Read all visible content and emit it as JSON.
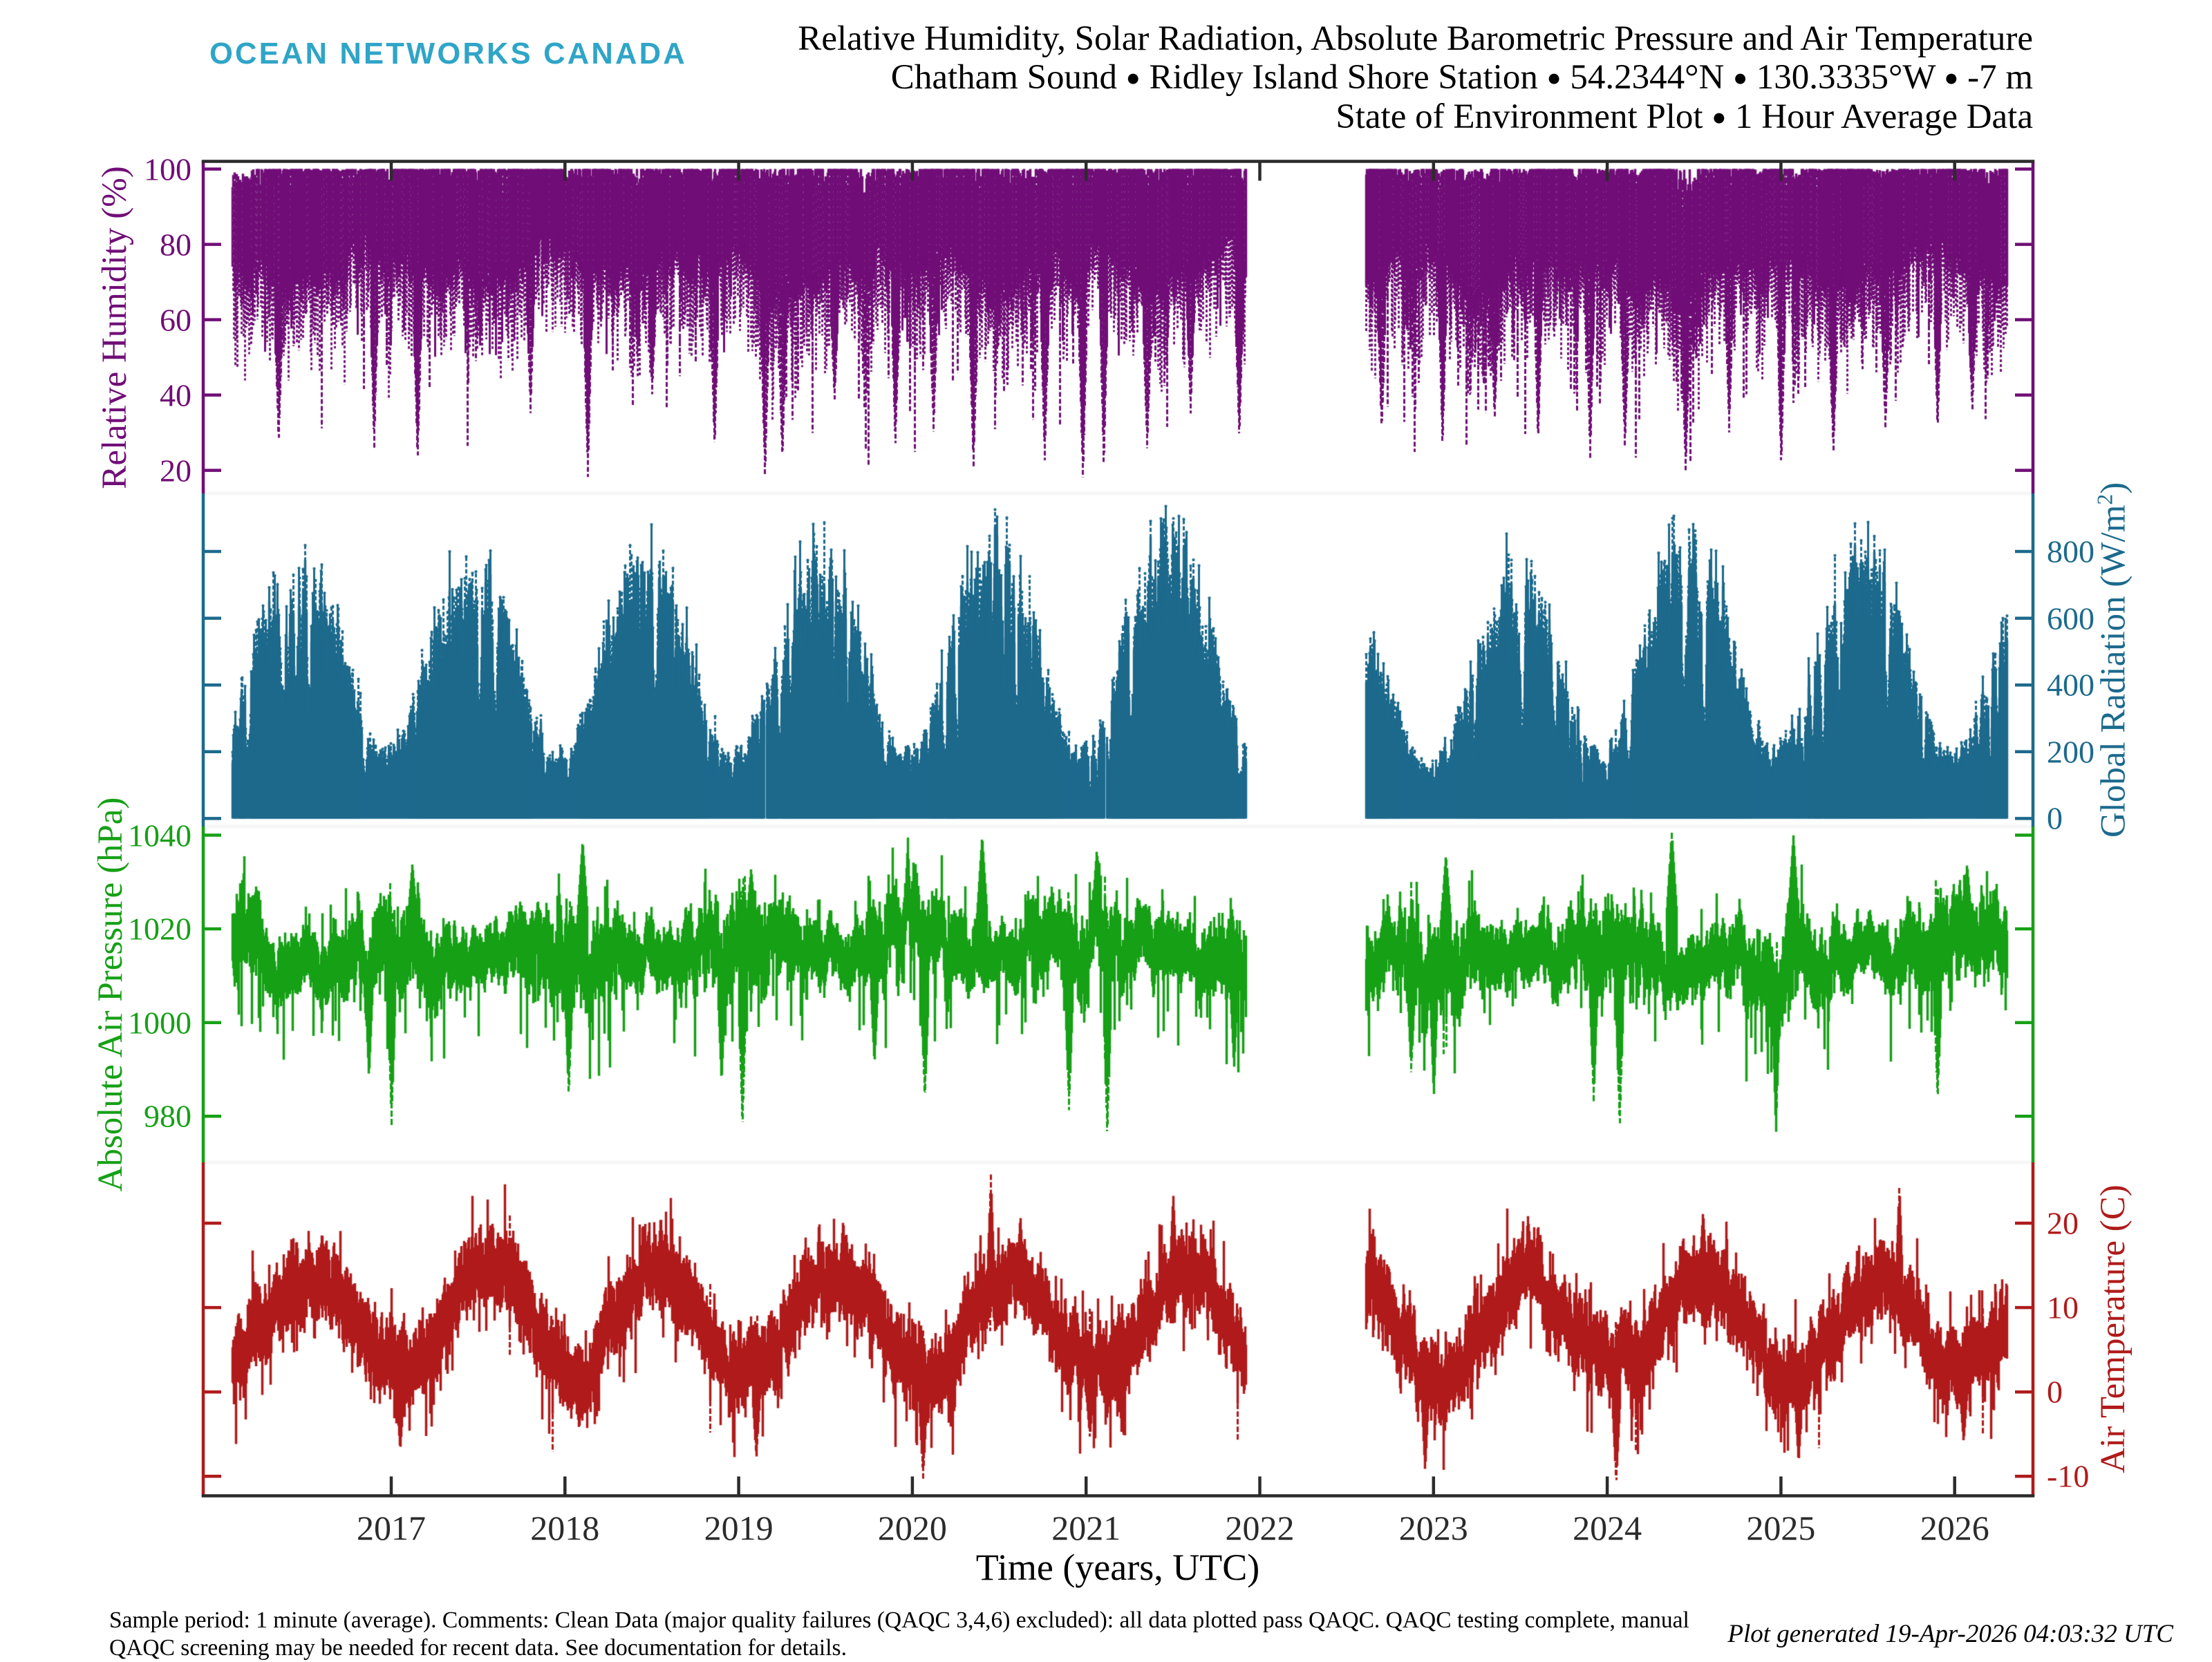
{
  "branding": {
    "logo_text": "OCEAN NETWORKS CANADA",
    "logo_color": "#2fa5c7"
  },
  "title": {
    "line1": "Relative Humidity, Solar Radiation, Absolute Barometric Pressure and Air Temperature",
    "line2": "Chatham Sound • Ridley Island Shore Station • 54.2344°N • 130.3335°W • -7 m",
    "line3": "State of Environment Plot • 1 Hour Average Data"
  },
  "footer": {
    "note_line1": "Sample period: 1 minute (average). Comments: Clean Data (major quality failures (QAQC 3,4,6) excluded): all data plotted pass QAQC. QAQC testing complete, manual",
    "note_line2": "QAQC screening may be needed for recent data. See documentation for details.",
    "generated_text": "Plot generated 19-Apr-2026 04:03:32 UTC"
  },
  "chart_data": {
    "type": "scatter",
    "description": "Four vertically stacked shore-station weather time series (1 hour average data) sharing one time axis.",
    "x_axis": {
      "label": "Time (years, UTC)",
      "ticks": [
        2017,
        2018,
        2019,
        2020,
        2021,
        2022,
        2023,
        2024,
        2025,
        2026
      ],
      "range": [
        2015.92,
        2026.44
      ],
      "data_start": 2016.085,
      "data_end": 2026.3,
      "data_gap": [
        2021.92,
        2022.61
      ]
    },
    "frame_color": "#2b2b2b",
    "boundary_color": "#f6f6f6",
    "series": [
      {
        "name": "Relative Humidity",
        "axis_label": "Relative Humidity (%)",
        "unit": "%",
        "color": "#700e77",
        "label_side": "left",
        "ticks": [
          20,
          40,
          60,
          80,
          100
        ],
        "ylim": [
          13.4,
          102
        ],
        "typical_upper": 100,
        "typical_lower_band": [
          68,
          88
        ],
        "notable_dry_dips": [
          [
            2016.35,
            27
          ],
          [
            2016.9,
            25
          ],
          [
            2017.15,
            22
          ],
          [
            2017.8,
            35
          ],
          [
            2018.13,
            18
          ],
          [
            2018.5,
            40
          ],
          [
            2018.86,
            25
          ],
          [
            2019.15,
            17
          ],
          [
            2019.25,
            22
          ],
          [
            2019.55,
            38
          ],
          [
            2019.9,
            26
          ],
          [
            2020.12,
            30
          ],
          [
            2020.35,
            20
          ],
          [
            2020.76,
            22
          ],
          [
            2020.98,
            17
          ],
          [
            2021.1,
            20
          ],
          [
            2021.35,
            25
          ],
          [
            2021.6,
            35
          ],
          [
            2021.88,
            28
          ],
          [
            2022.7,
            30
          ],
          [
            2023.05,
            25
          ],
          [
            2023.35,
            33
          ],
          [
            2023.6,
            27
          ],
          [
            2023.9,
            23
          ],
          [
            2024.1,
            25
          ],
          [
            2024.45,
            19
          ],
          [
            2024.7,
            30
          ],
          [
            2025.0,
            20
          ],
          [
            2025.3,
            24
          ],
          [
            2025.6,
            30
          ],
          [
            2025.9,
            30
          ],
          [
            2026.1,
            35
          ]
        ]
      },
      {
        "name": "Global Radiation",
        "axis_label": "Global Radiation (W/m²)",
        "unit": "W/m²",
        "color": "#1c6a8d",
        "label_side": "right",
        "ticks": [
          0,
          200,
          400,
          600,
          800
        ],
        "ylim": [
          -31,
          968
        ],
        "baseline": 0,
        "seasonal_peak_month": "late June",
        "winter_envelope": 110,
        "annual_peaks": [
          [
            2016.48,
            880
          ],
          [
            2017.47,
            845
          ],
          [
            2018.47,
            850
          ],
          [
            2019.48,
            855
          ],
          [
            2020.46,
            890
          ],
          [
            2021.45,
            900
          ],
          [
            2022.75,
            700
          ],
          [
            2023.47,
            830
          ],
          [
            2024.46,
            905
          ],
          [
            2025.47,
            870
          ],
          [
            2026.3,
            760
          ]
        ],
        "micro_gaps": [
          [
            2019.148,
            2019.158
          ],
          [
            2021.105,
            2021.117
          ]
        ]
      },
      {
        "name": "Absolute Air Pressure",
        "axis_label": "Absolute Air Pressure (hPa)",
        "unit": "hPa",
        "color": "#16a016",
        "label_side": "left",
        "ticks": [
          980,
          1000,
          1020,
          1040
        ],
        "ylim": [
          970,
          1041.3
        ],
        "typical_band": [
          1005,
          1025
        ],
        "mean_level": 1014.5,
        "storm_lows": [
          [
            2016.87,
            988
          ],
          [
            2017.0,
            978
          ],
          [
            2018.02,
            984
          ],
          [
            2018.9,
            987
          ],
          [
            2019.02,
            977
          ],
          [
            2019.78,
            991
          ],
          [
            2020.07,
            983
          ],
          [
            2020.9,
            981
          ],
          [
            2021.12,
            975
          ],
          [
            2021.85,
            990
          ],
          [
            2022.87,
            989
          ],
          [
            2023.0,
            984
          ],
          [
            2023.92,
            983
          ],
          [
            2024.07,
            977
          ],
          [
            2024.97,
            976
          ],
          [
            2025.9,
            983
          ]
        ],
        "high_events": [
          [
            2017.12,
            1034
          ],
          [
            2018.1,
            1039
          ],
          [
            2019.07,
            1033
          ],
          [
            2020.4,
            1040
          ],
          [
            2021.06,
            1037
          ],
          [
            2023.07,
            1036
          ],
          [
            2024.37,
            1041
          ],
          [
            2025.07,
            1040
          ],
          [
            2026.07,
            1034
          ]
        ]
      },
      {
        "name": "Air Temperature",
        "axis_label": "Air Temperature (C)",
        "unit": "C",
        "color": "#b01b1b",
        "label_side": "right",
        "ticks": [
          -10,
          0,
          10,
          20
        ],
        "ylim": [
          -12.4,
          27.2
        ],
        "seasonal_mean_winter": 2.2,
        "seasonal_mean_summer": 13.8,
        "heat_spikes": [
          [
            2016.6,
            19
          ],
          [
            2017.57,
            20
          ],
          [
            2018.55,
            21
          ],
          [
            2019.6,
            20.5
          ],
          [
            2020.45,
            25.8
          ],
          [
            2020.62,
            21
          ],
          [
            2021.5,
            23.5
          ],
          [
            2023.6,
            20
          ],
          [
            2024.55,
            21.5
          ],
          [
            2025.68,
            24.8
          ]
        ],
        "cold_snaps": [
          [
            2017.05,
            -7
          ],
          [
            2018.08,
            -4.5
          ],
          [
            2019.1,
            -8
          ],
          [
            2020.06,
            -10.5
          ],
          [
            2021.02,
            -5.5
          ],
          [
            2022.95,
            -9.5
          ],
          [
            2024.05,
            -11
          ],
          [
            2025.1,
            -8.5
          ],
          [
            2026.05,
            -6
          ]
        ]
      }
    ]
  }
}
